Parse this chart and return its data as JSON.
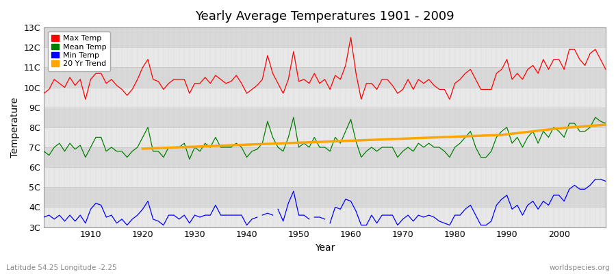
{
  "title": "Yearly Average Temperatures 1901 - 2009",
  "xlabel": "Year",
  "ylabel": "Temperature",
  "subtitle_left": "Latitude 54.25 Longitude -2.25",
  "subtitle_right": "worldspecies.org",
  "ylim": [
    3,
    13
  ],
  "yticks": [
    3,
    4,
    5,
    6,
    7,
    8,
    9,
    10,
    11,
    12,
    13
  ],
  "ytick_labels": [
    "3C",
    "4C",
    "5C",
    "6C",
    "7C",
    "8C",
    "9C",
    "10C",
    "11C",
    "12C",
    "13C"
  ],
  "years": [
    1901,
    1902,
    1903,
    1904,
    1905,
    1906,
    1907,
    1908,
    1909,
    1910,
    1911,
    1912,
    1913,
    1914,
    1915,
    1916,
    1917,
    1918,
    1919,
    1920,
    1921,
    1922,
    1923,
    1924,
    1925,
    1926,
    1927,
    1928,
    1929,
    1930,
    1931,
    1932,
    1933,
    1934,
    1935,
    1936,
    1937,
    1938,
    1939,
    1940,
    1941,
    1942,
    1943,
    1944,
    1945,
    1946,
    1947,
    1948,
    1949,
    1950,
    1951,
    1952,
    1953,
    1954,
    1955,
    1956,
    1957,
    1958,
    1959,
    1960,
    1961,
    1962,
    1963,
    1964,
    1965,
    1966,
    1967,
    1968,
    1969,
    1970,
    1971,
    1972,
    1973,
    1974,
    1975,
    1976,
    1977,
    1978,
    1979,
    1980,
    1981,
    1982,
    1983,
    1984,
    1985,
    1986,
    1987,
    1988,
    1989,
    1990,
    1991,
    1992,
    1993,
    1994,
    1995,
    1996,
    1997,
    1998,
    1999,
    2000,
    2001,
    2002,
    2003,
    2004,
    2005,
    2006,
    2007,
    2008,
    2009
  ],
  "max_temp": [
    9.7,
    9.9,
    10.4,
    10.2,
    10.0,
    10.5,
    10.1,
    10.4,
    9.4,
    10.4,
    10.7,
    10.7,
    10.2,
    10.4,
    10.1,
    9.9,
    9.6,
    9.9,
    10.4,
    11.0,
    11.4,
    10.4,
    10.3,
    9.9,
    10.2,
    10.4,
    10.4,
    10.4,
    9.7,
    10.2,
    10.2,
    10.5,
    10.2,
    10.6,
    10.4,
    10.2,
    10.3,
    10.6,
    10.2,
    9.7,
    9.9,
    10.1,
    10.4,
    11.6,
    10.7,
    10.2,
    9.7,
    10.4,
    11.8,
    10.3,
    10.4,
    10.2,
    10.7,
    10.2,
    10.4,
    9.9,
    10.6,
    10.4,
    11.1,
    12.5,
    10.7,
    9.4,
    10.2,
    10.2,
    9.9,
    10.4,
    10.4,
    10.1,
    9.7,
    9.9,
    10.4,
    9.9,
    10.4,
    10.2,
    10.4,
    10.1,
    9.9,
    9.9,
    9.4,
    10.2,
    10.4,
    10.7,
    10.9,
    10.4,
    9.9,
    9.9,
    9.9,
    10.7,
    10.9,
    11.4,
    10.4,
    10.7,
    10.4,
    10.9,
    11.1,
    10.7,
    11.4,
    10.9,
    11.4,
    11.4,
    10.9,
    11.9,
    11.9,
    11.4,
    11.1,
    11.7,
    11.9,
    11.4,
    10.9
  ],
  "mean_temp": [
    6.8,
    6.6,
    7.0,
    7.2,
    6.8,
    7.2,
    6.9,
    7.1,
    6.5,
    7.0,
    7.5,
    7.5,
    6.8,
    7.0,
    6.8,
    6.8,
    6.5,
    6.8,
    7.0,
    7.5,
    8.0,
    6.8,
    6.8,
    6.5,
    7.0,
    7.0,
    7.0,
    7.2,
    6.4,
    7.0,
    6.8,
    7.2,
    7.0,
    7.5,
    7.0,
    7.0,
    7.0,
    7.2,
    7.0,
    6.5,
    6.8,
    6.9,
    7.2,
    8.3,
    7.5,
    7.0,
    6.8,
    7.5,
    8.5,
    7.0,
    7.2,
    7.0,
    7.5,
    7.0,
    7.0,
    6.8,
    7.5,
    7.2,
    7.8,
    8.4,
    7.3,
    6.5,
    6.8,
    7.0,
    6.8,
    7.0,
    7.0,
    7.0,
    6.5,
    6.8,
    7.0,
    6.8,
    7.2,
    7.0,
    7.2,
    7.0,
    7.0,
    6.8,
    6.5,
    7.0,
    7.2,
    7.5,
    7.8,
    7.0,
    6.5,
    6.5,
    6.8,
    7.5,
    7.8,
    8.0,
    7.2,
    7.5,
    7.0,
    7.5,
    7.8,
    7.2,
    7.8,
    7.5,
    8.0,
    7.8,
    7.5,
    8.2,
    8.2,
    7.8,
    7.8,
    8.0,
    8.5,
    8.3,
    8.2
  ],
  "min_temp_segments": [
    {
      "years": [
        1901,
        1902,
        1903,
        1904,
        1905,
        1906,
        1907,
        1908,
        1909,
        1910,
        1911,
        1912,
        1913,
        1914,
        1915,
        1916,
        1917,
        1918,
        1919,
        1920,
        1921,
        1922,
        1923,
        1924,
        1925,
        1926,
        1927,
        1928,
        1929,
        1930,
        1931,
        1932,
        1933,
        1934,
        1935,
        1936,
        1937,
        1938,
        1939,
        1940,
        1941,
        1942
      ],
      "temps": [
        3.5,
        3.6,
        3.4,
        3.6,
        3.3,
        3.6,
        3.3,
        3.6,
        3.2,
        3.9,
        4.2,
        4.1,
        3.5,
        3.6,
        3.2,
        3.4,
        3.1,
        3.4,
        3.6,
        3.9,
        4.3,
        3.4,
        3.3,
        3.1,
        3.6,
        3.6,
        3.4,
        3.6,
        3.2,
        3.6,
        3.5,
        3.6,
        3.6,
        4.1,
        3.6,
        3.6,
        3.6,
        3.6,
        3.6,
        3.1,
        3.4,
        3.5
      ]
    },
    {
      "years": [
        1943,
        1944,
        1945
      ],
      "temps": [
        3.6,
        3.7,
        3.6
      ]
    },
    {
      "years": [
        1946,
        1947,
        1948,
        1949,
        1950,
        1951,
        1952
      ],
      "temps": [
        3.9,
        3.3,
        4.2,
        4.8,
        3.6,
        3.6,
        3.4
      ]
    },
    {
      "years": [
        1953,
        1954,
        1955
      ],
      "temps": [
        3.5,
        3.5,
        3.4
      ]
    },
    {
      "years": [
        1956,
        1957,
        1958,
        1959,
        1960,
        1961,
        1962,
        1963,
        1964,
        1965,
        1966,
        1967,
        1968,
        1969,
        1970,
        1971,
        1972,
        1973,
        1974,
        1975,
        1976,
        1977,
        1978,
        1979,
        1980,
        1981,
        1982,
        1983,
        1984,
        1985,
        1986,
        1987,
        1988,
        1989,
        1990,
        1991,
        1992,
        1993,
        1994,
        1995,
        1996,
        1997,
        1998,
        1999,
        2000,
        2001,
        2002,
        2003,
        2004,
        2005,
        2006,
        2007,
        2008,
        2009
      ],
      "temps": [
        3.2,
        4.0,
        3.9,
        4.4,
        4.3,
        3.8,
        3.1,
        3.1,
        3.6,
        3.2,
        3.6,
        3.6,
        3.6,
        3.1,
        3.4,
        3.6,
        3.3,
        3.6,
        3.5,
        3.6,
        3.5,
        3.3,
        3.2,
        3.1,
        3.6,
        3.6,
        3.9,
        4.1,
        3.6,
        3.1,
        3.1,
        3.3,
        4.1,
        4.4,
        4.6,
        3.9,
        4.1,
        3.6,
        4.1,
        4.3,
        3.9,
        4.3,
        4.1,
        4.6,
        4.6,
        4.3,
        4.9,
        5.1,
        4.9,
        4.9,
        5.1,
        5.4,
        5.4,
        5.3
      ]
    }
  ],
  "trend_years": [
    1920,
    1921,
    1922,
    1923,
    1924,
    1925,
    1926,
    1927,
    1928,
    1929,
    1930,
    1931,
    1932,
    1933,
    1934,
    1935,
    1936,
    1937,
    1938,
    1939,
    1940,
    1941,
    1942,
    1943,
    1944,
    1945,
    1946,
    1947,
    1948,
    1949,
    1950,
    1951,
    1952,
    1953,
    1954,
    1955,
    1956,
    1957,
    1958,
    1959,
    1960,
    1961,
    1962,
    1963,
    1964,
    1965,
    1966,
    1967,
    1968,
    1969,
    1970,
    1971,
    1972,
    1973,
    1974,
    1975,
    1976,
    1977,
    1978,
    1979,
    1980,
    1981,
    1982,
    1983,
    1984,
    1985,
    1986,
    1987,
    1988,
    1989,
    1990,
    1991,
    1992,
    1993,
    1994,
    1995,
    1996,
    1997,
    1998,
    1999,
    2000,
    2001,
    2002,
    2003,
    2004,
    2005,
    2006,
    2007,
    2008,
    2009
  ],
  "trend_vals": [
    6.93,
    6.94,
    6.95,
    6.96,
    6.97,
    6.98,
    6.99,
    7.0,
    7.01,
    7.02,
    7.03,
    7.04,
    7.05,
    7.06,
    7.07,
    7.08,
    7.09,
    7.1,
    7.11,
    7.12,
    7.13,
    7.14,
    7.15,
    7.16,
    7.17,
    7.18,
    7.19,
    7.2,
    7.21,
    7.22,
    7.23,
    7.24,
    7.25,
    7.26,
    7.27,
    7.28,
    7.29,
    7.3,
    7.31,
    7.32,
    7.33,
    7.34,
    7.35,
    7.36,
    7.37,
    7.38,
    7.39,
    7.4,
    7.41,
    7.42,
    7.43,
    7.44,
    7.45,
    7.46,
    7.47,
    7.48,
    7.49,
    7.5,
    7.51,
    7.52,
    7.53,
    7.54,
    7.55,
    7.56,
    7.57,
    7.58,
    7.59,
    7.6,
    7.61,
    7.62,
    7.65,
    7.68,
    7.71,
    7.74,
    7.77,
    7.8,
    7.83,
    7.86,
    7.89,
    7.92,
    7.95,
    7.97,
    7.99,
    8.01,
    8.03,
    8.05,
    8.07,
    8.09,
    8.11,
    8.13
  ],
  "colors": {
    "max": "#ff0000",
    "mean": "#008000",
    "min": "#0000ff",
    "trend": "#ffa500",
    "fig_bg": "#ffffff",
    "plot_bg": "#e8e8e8",
    "plot_bg2": "#d8d8d8",
    "grid": "#c8c8c8"
  },
  "xticks": [
    1910,
    1920,
    1930,
    1940,
    1950,
    1960,
    1970,
    1980,
    1990,
    2000
  ],
  "xlim": [
    1901,
    2009
  ]
}
